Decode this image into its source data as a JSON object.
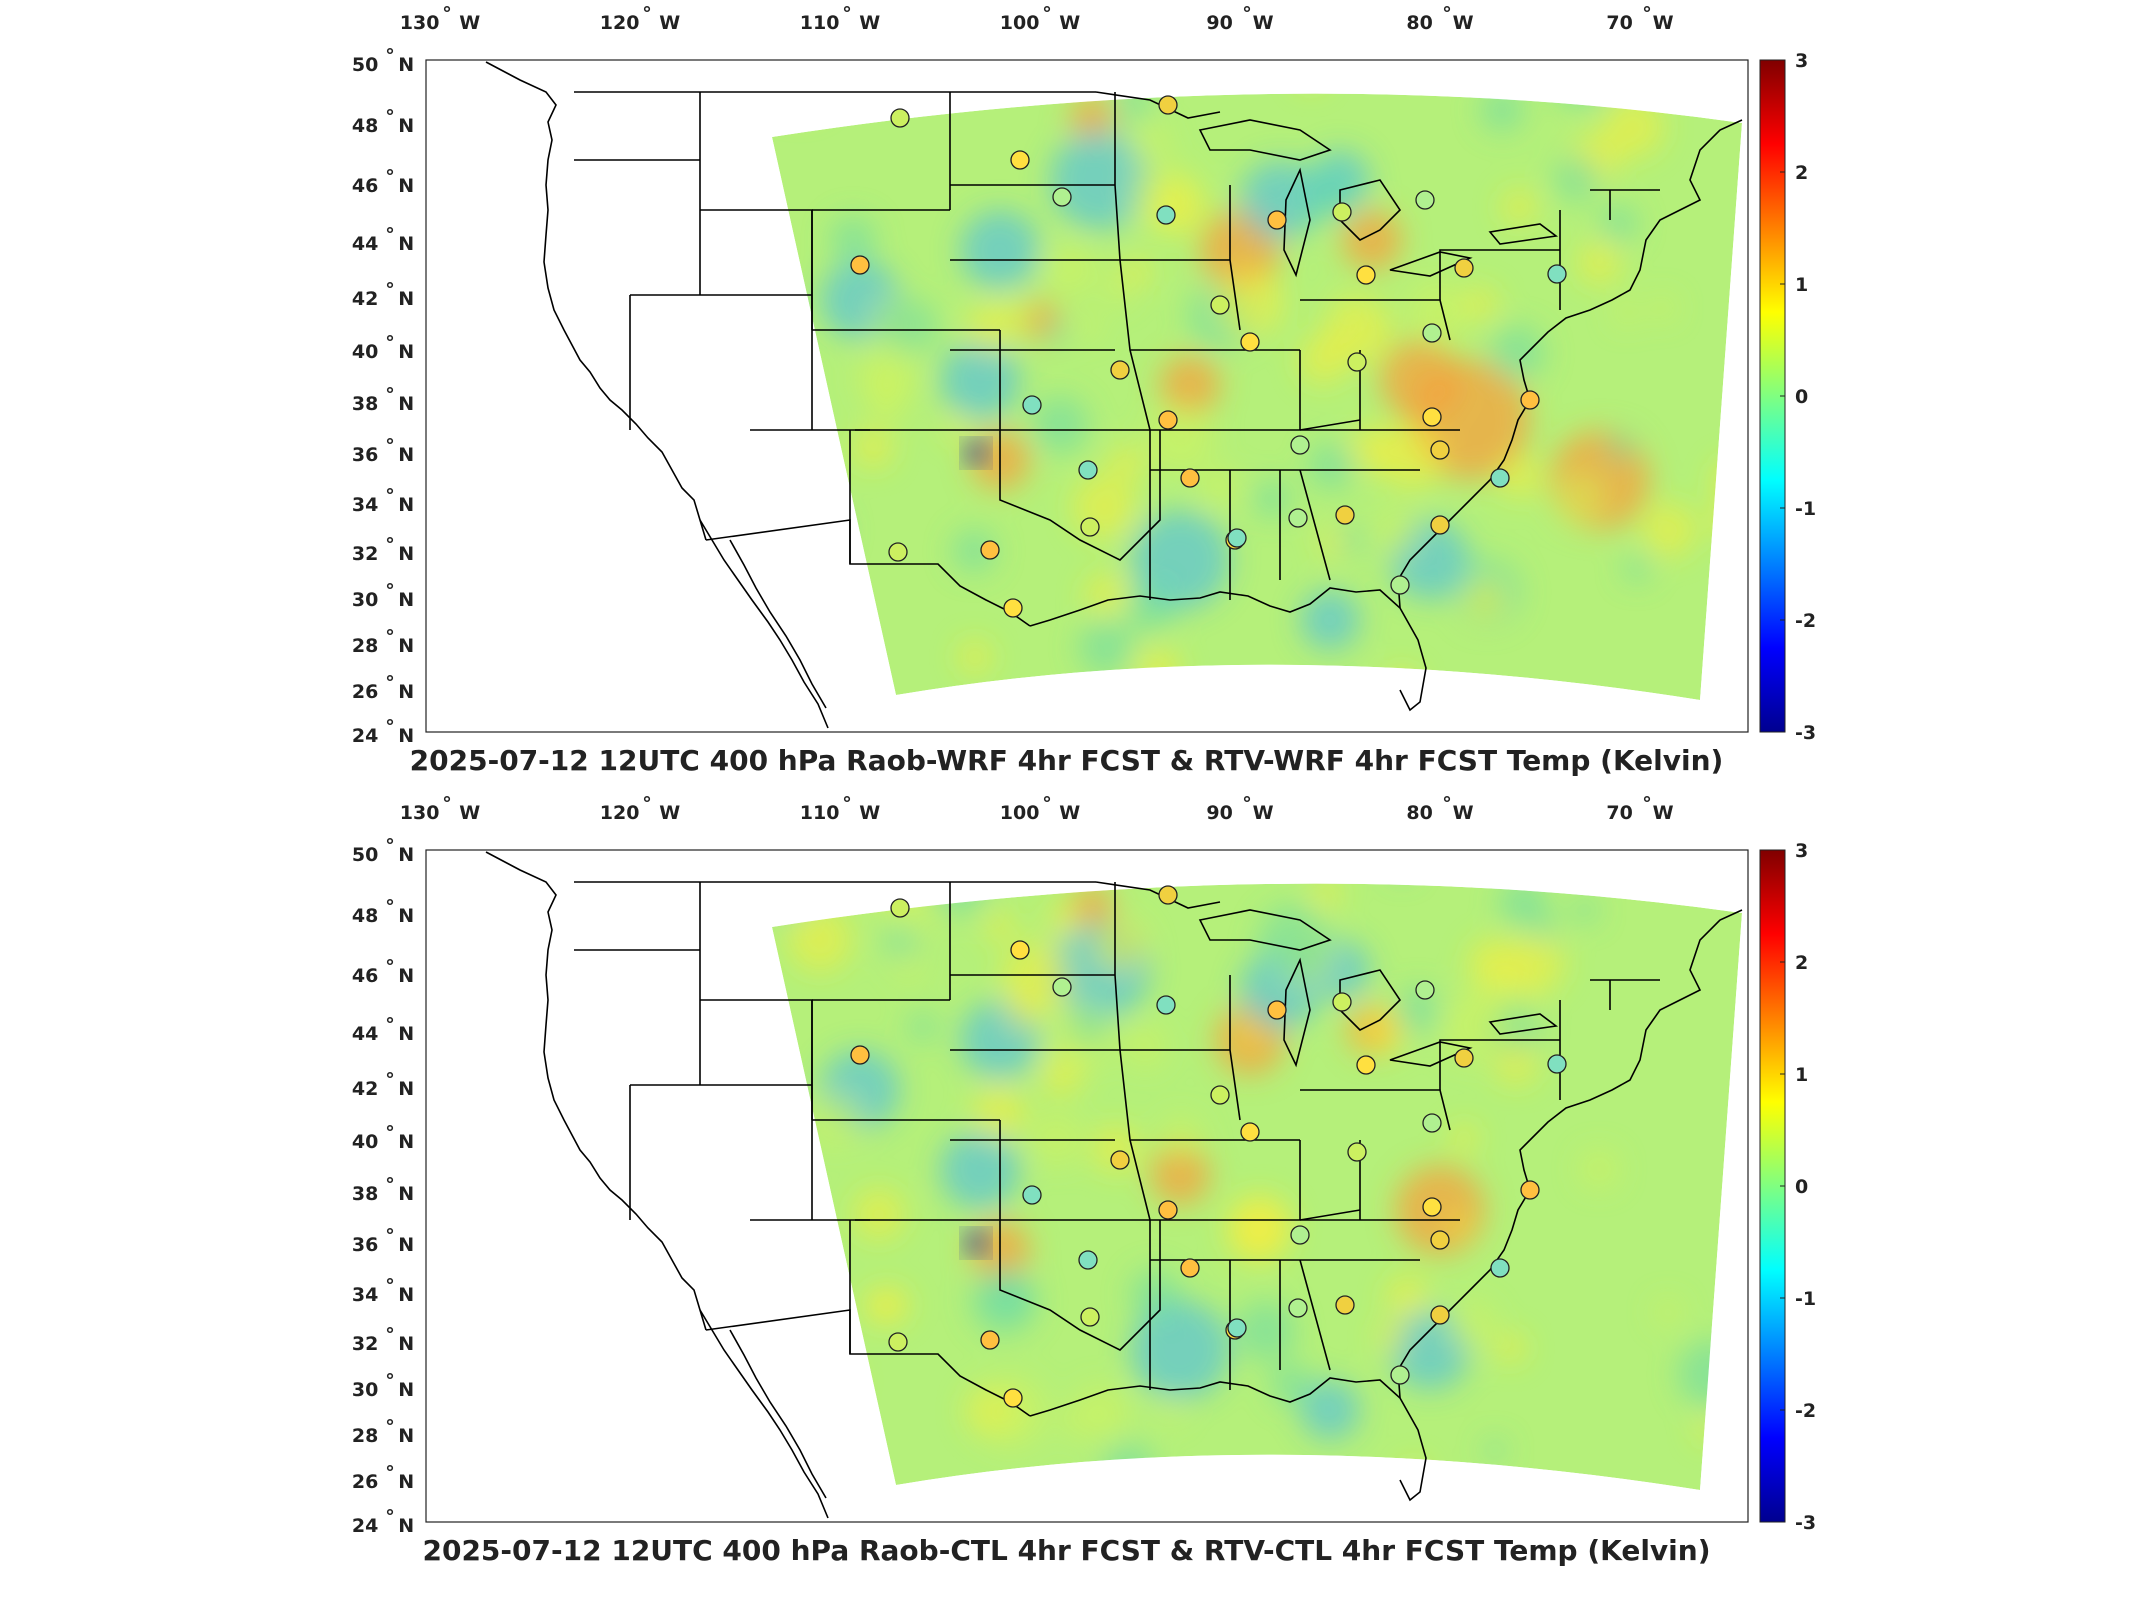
{
  "panels": [
    {
      "title": "2025-07-12 12UTC 400 hPa Raob-WRF 4hr FCST & RTV-WRF 4hr FCST Temp (Kelvin)",
      "variant": "wrf"
    },
    {
      "title": "2025-07-12 12UTC 400 hPa Raob-CTL 4hr FCST & RTV-CTL 4hr FCST Temp (Kelvin)",
      "variant": "ctl"
    }
  ],
  "lon_labels": [
    "130",
    "120",
    "110",
    "100",
    "90",
    "80",
    "70"
  ],
  "lon_suffix": "W",
  "lat_labels": [
    "50",
    "48",
    "46",
    "44",
    "42",
    "40",
    "38",
    "36",
    "34",
    "32",
    "30",
    "28",
    "26",
    "24"
  ],
  "lat_suffix": "N",
  "colorbar": {
    "ticks": [
      "3",
      "2",
      "1",
      "0",
      "-1",
      "-2",
      "-3"
    ],
    "range": [
      -3,
      3
    ],
    "colormap": "jet",
    "colors": [
      "#00008f",
      "#0000ff",
      "#0080ff",
      "#00ffff",
      "#80ff80",
      "#ffff00",
      "#ff8000",
      "#ff0000",
      "#800000"
    ]
  },
  "map_colors": {
    "field_base": "#b5f07a",
    "warm": "#f6a23c",
    "cool": "#3fb6f0",
    "border": "#000000"
  }
}
